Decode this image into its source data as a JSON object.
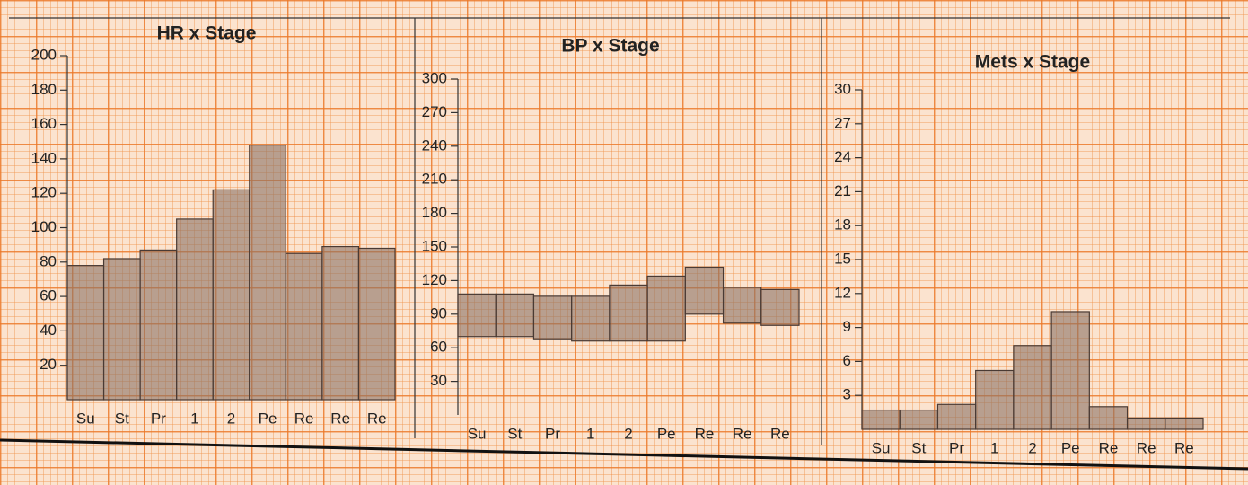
{
  "chart_data": [
    {
      "type": "bar",
      "title": "HR x Stage",
      "categories": [
        "Su",
        "St",
        "Pr",
        "1",
        "2",
        "Pe",
        "Re",
        "Re",
        "Re"
      ],
      "values": [
        78,
        82,
        87,
        105,
        122,
        148,
        85,
        89,
        88
      ],
      "color": "#8c7264",
      "ylim": [
        0,
        200
      ],
      "yticks": [
        20,
        40,
        60,
        80,
        100,
        120,
        140,
        160,
        180,
        200
      ]
    },
    {
      "type": "range-bar",
      "title": "BP x Stage",
      "categories": [
        "Su",
        "St",
        "Pr",
        "1",
        "2",
        "Pe",
        "Re",
        "Re",
        "Re"
      ],
      "low": [
        70,
        70,
        68,
        66,
        66,
        66,
        90,
        82,
        80
      ],
      "high": [
        108,
        108,
        106,
        106,
        116,
        124,
        132,
        114,
        112
      ],
      "color": "#8c7264",
      "ylim": [
        0,
        300
      ],
      "yticks": [
        30,
        60,
        90,
        120,
        150,
        180,
        210,
        240,
        270,
        300
      ]
    },
    {
      "type": "bar",
      "title": "Mets x Stage",
      "categories": [
        "Su",
        "St",
        "Pr",
        "1",
        "2",
        "Pe",
        "Re",
        "Re",
        "Re"
      ],
      "values": [
        1.7,
        1.7,
        2.2,
        5.2,
        7.4,
        10.4,
        2,
        1,
        1
      ],
      "color": "#8c7264",
      "ylim": [
        0,
        30
      ],
      "yticks": [
        3,
        6,
        9,
        12,
        15,
        18,
        21,
        24,
        27,
        30
      ]
    }
  ]
}
